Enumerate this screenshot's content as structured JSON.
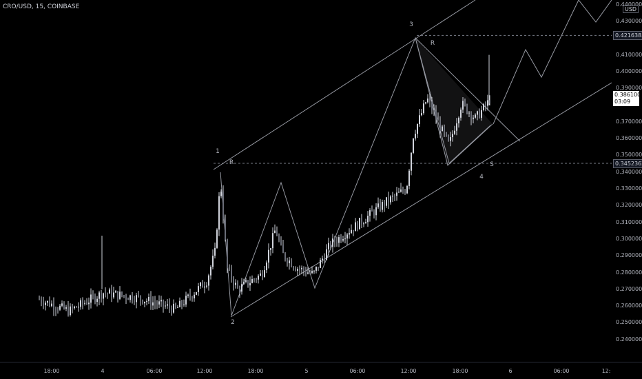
{
  "header": {
    "symbol_title": "CRO/USD, 15, COINBASE"
  },
  "price_axis": {
    "currency": "USD",
    "ticks": [
      {
        "value": 0.44,
        "label": "0.44000000"
      },
      {
        "value": 0.43,
        "label": "0.43000000"
      },
      {
        "value": 0.41,
        "label": "0.41000000"
      },
      {
        "value": 0.4,
        "label": "0.40000000"
      },
      {
        "value": 0.39,
        "label": "0.39000000"
      },
      {
        "value": 0.37,
        "label": "0.37000000"
      },
      {
        "value": 0.36,
        "label": "0.36000000"
      },
      {
        "value": 0.35,
        "label": "0.35000000"
      },
      {
        "value": 0.34,
        "label": "0.34000000"
      },
      {
        "value": 0.33,
        "label": "0.33000000"
      },
      {
        "value": 0.32,
        "label": "0.32000000"
      },
      {
        "value": 0.31,
        "label": "0.31000000"
      },
      {
        "value": 0.3,
        "label": "0.30000000"
      },
      {
        "value": 0.29,
        "label": "0.29000000"
      },
      {
        "value": 0.28,
        "label": "0.28000000"
      },
      {
        "value": 0.27,
        "label": "0.27000000"
      },
      {
        "value": 0.26,
        "label": "0.26000000"
      },
      {
        "value": 0.25,
        "label": "0.25000000"
      },
      {
        "value": 0.24,
        "label": "0.24000000"
      }
    ],
    "badges": [
      {
        "value": 0.42163852,
        "label": "0.42163852"
      },
      {
        "value": 0.34523622,
        "label": "0.34523622"
      }
    ],
    "current": {
      "value": 0.3861,
      "price": "0.38610000",
      "countdown": "03:09"
    }
  },
  "time_axis": {
    "ticks": [
      {
        "label": "18:00"
      },
      {
        "label": "4"
      },
      {
        "label": "06:00"
      },
      {
        "label": "12:00"
      },
      {
        "label": "18:00"
      },
      {
        "label": "5"
      },
      {
        "label": "06:00"
      },
      {
        "label": "12:00"
      },
      {
        "label": "18:00"
      },
      {
        "label": "6"
      },
      {
        "label": "06:00"
      },
      {
        "label": "12:"
      }
    ]
  },
  "wave_labels": [
    {
      "text": "1"
    },
    {
      "text": "R"
    },
    {
      "text": "2"
    },
    {
      "text": "3"
    },
    {
      "text": "R"
    },
    {
      "text": "4"
    },
    {
      "text": "S"
    }
  ],
  "colors": {
    "background": "#000000",
    "candle": "#d1d4dc",
    "drawing": "#9598a1",
    "dash": "#787b86"
  }
}
